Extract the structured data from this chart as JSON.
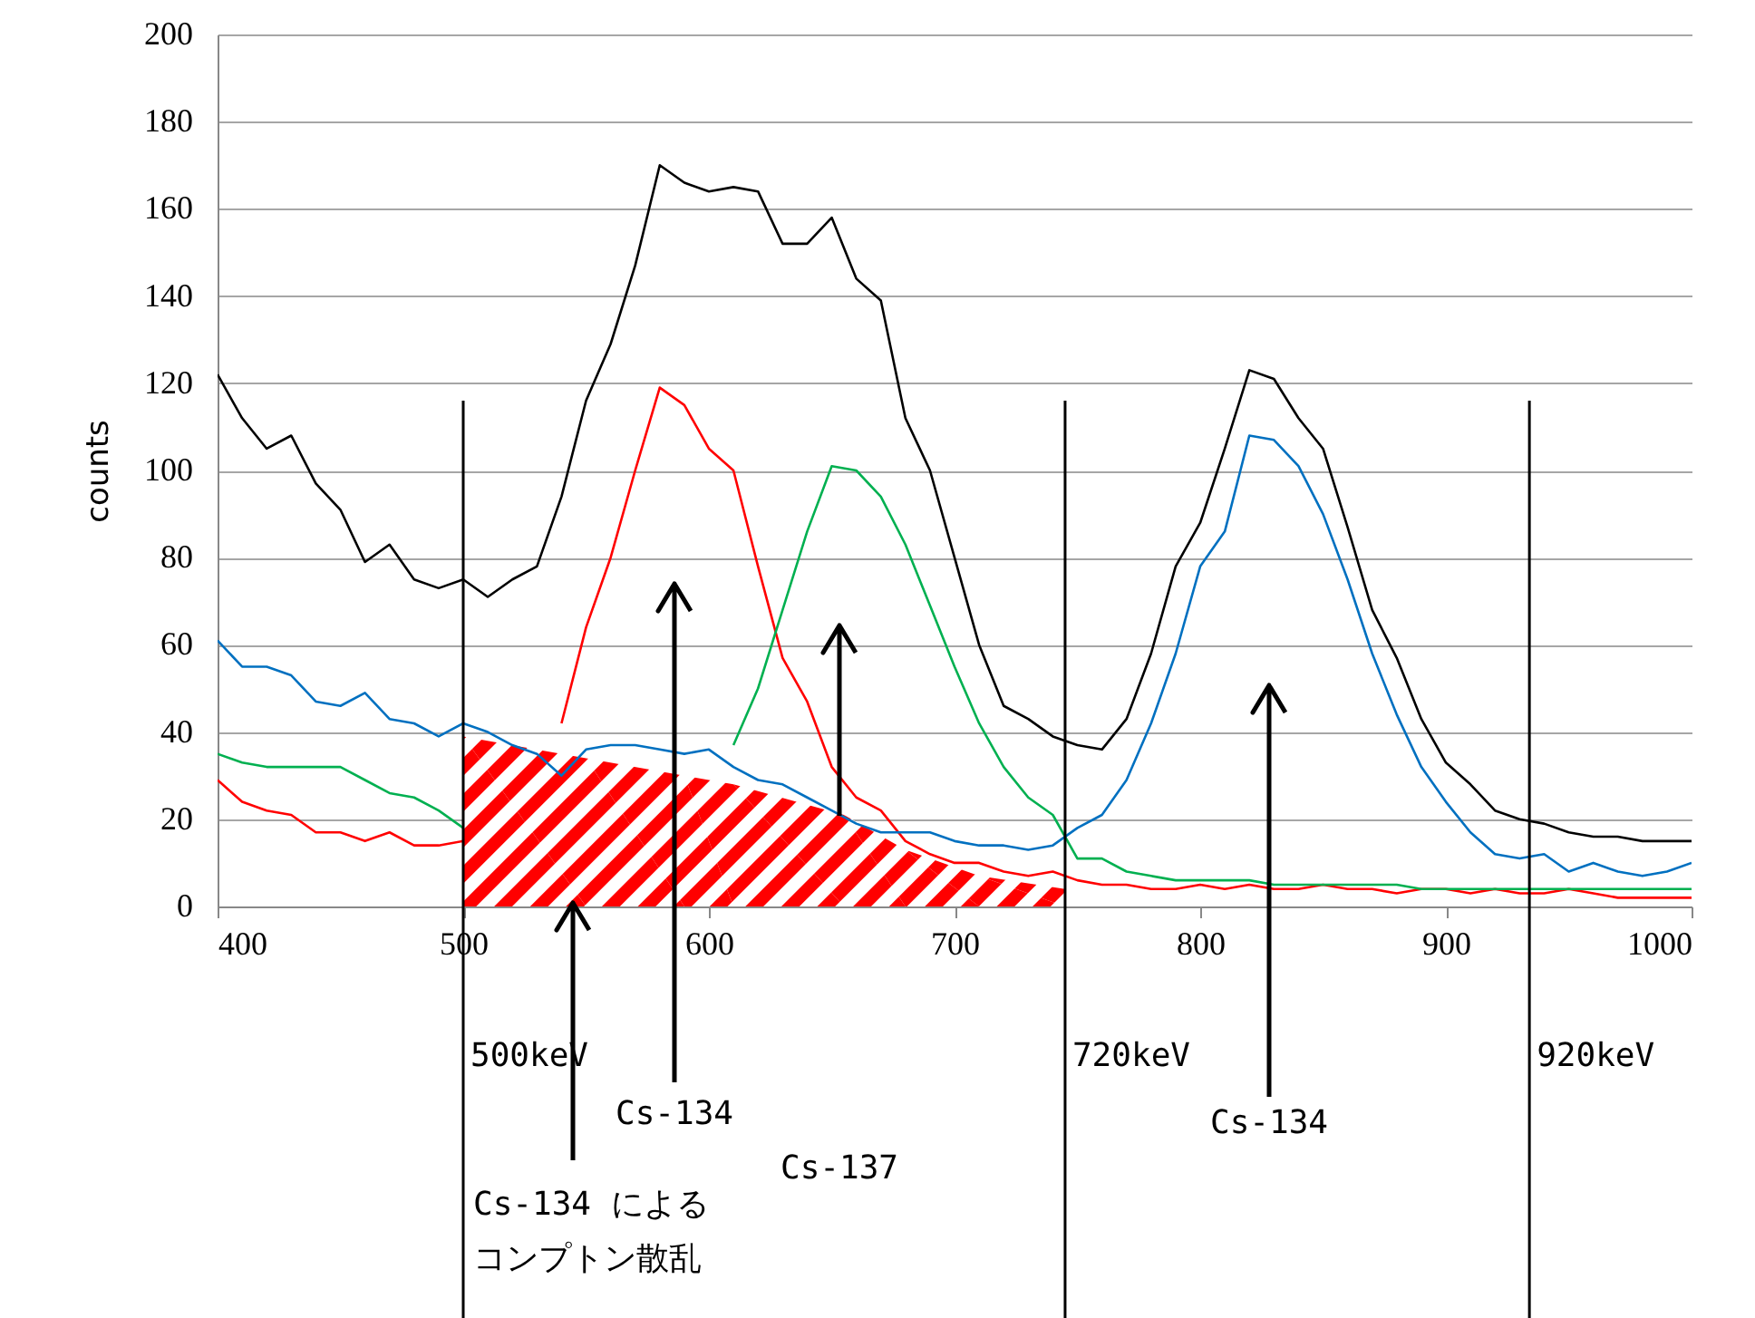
{
  "chart_data": {
    "type": "line",
    "ylabel": "counts",
    "x": [
      400,
      410,
      420,
      430,
      440,
      450,
      460,
      470,
      480,
      490,
      500,
      510,
      520,
      530,
      540,
      550,
      560,
      570,
      580,
      590,
      600,
      610,
      620,
      630,
      640,
      650,
      660,
      670,
      680,
      690,
      700,
      710,
      720,
      730,
      740,
      750,
      760,
      770,
      780,
      790,
      800,
      810,
      820,
      830,
      840,
      850,
      860,
      870,
      880,
      890,
      900,
      910,
      920,
      930,
      940,
      950,
      960,
      970,
      980,
      990,
      1000
    ],
    "series": [
      {
        "type": "area",
        "color": "#ff0000",
        "x": [
          500,
          550,
          590,
          610,
          655,
          680,
          710,
          745
        ],
        "values": [
          39,
          34,
          30,
          28,
          21,
          13,
          7,
          4
        ]
      },
      {
        "color": "#ff0000",
        "values": [
          29,
          24,
          22,
          21,
          17,
          17,
          15,
          17,
          14,
          14,
          15,
          null,
          null,
          null,
          42,
          64,
          80,
          100,
          119,
          115,
          105,
          100,
          78,
          57,
          47,
          32,
          25,
          22,
          15,
          12,
          10,
          10,
          8,
          7,
          8,
          6,
          5,
          5,
          4,
          4,
          5,
          4,
          5,
          4,
          4,
          5,
          4,
          4,
          3,
          4,
          4,
          3,
          4,
          3,
          3,
          4,
          3,
          2,
          2,
          2,
          2
        ]
      },
      {
        "color": "#00b050",
        "values": [
          35,
          33,
          32,
          32,
          32,
          32,
          29,
          26,
          25,
          22,
          18,
          null,
          null,
          null,
          null,
          null,
          null,
          null,
          null,
          null,
          null,
          37,
          50,
          68,
          86,
          101,
          100,
          94,
          83,
          69,
          55,
          42,
          32,
          25,
          21,
          11,
          11,
          8,
          7,
          6,
          6,
          6,
          6,
          5,
          5,
          5,
          5,
          5,
          5,
          4,
          4,
          4,
          4,
          4,
          4,
          4,
          4,
          4,
          4,
          4,
          4
        ]
      },
      {
        "color": "#0070c0",
        "values": [
          61,
          55,
          55,
          53,
          47,
          46,
          49,
          43,
          42,
          39,
          42,
          40,
          37,
          35,
          30,
          36,
          37,
          37,
          36,
          35,
          36,
          32,
          29,
          28,
          25,
          22,
          19,
          17,
          17,
          17,
          15,
          14,
          14,
          13,
          14,
          18,
          21,
          29,
          42,
          58,
          78,
          86,
          108,
          107,
          101,
          90,
          75,
          58,
          44,
          32,
          24,
          17,
          12,
          11,
          12,
          8,
          10,
          8,
          7,
          8,
          10
        ]
      },
      {
        "color": "#000000",
        "values": [
          122,
          112,
          105,
          108,
          97,
          91,
          79,
          83,
          75,
          73,
          75,
          71,
          75,
          78,
          94,
          116,
          129,
          147,
          170,
          166,
          164,
          165,
          164,
          152,
          152,
          158,
          144,
          139,
          112,
          100,
          80,
          60,
          46,
          43,
          39,
          37,
          36,
          43,
          58,
          78,
          88,
          105,
          123,
          121,
          112,
          105,
          87,
          68,
          57,
          43,
          33,
          28,
          22,
          20,
          19,
          17,
          16,
          16,
          15,
          15,
          15
        ]
      }
    ],
    "xlim": [
      400,
      1000
    ],
    "xticks": [
      400,
      500,
      600,
      700,
      800,
      900,
      {
        "value": 1000,
        "label": "1000"
      }
    ],
    "ylim": [
      0,
      200
    ],
    "yticks": [
      0,
      20,
      40,
      60,
      80,
      100,
      120,
      140,
      160,
      180,
      200
    ],
    "grid": "y",
    "ref_lines": [
      {
        "axis": "x",
        "value": 500,
        "label": "500keV",
        "color": "#000000"
      },
      {
        "axis": "x",
        "value": 745,
        "label": "720keV",
        "color": "#000000"
      },
      {
        "axis": "x",
        "value": 934,
        "label": "920keV",
        "color": "#000000"
      }
    ],
    "annotations": [
      "Cs-134",
      "Cs-137",
      "Cs-134",
      "Cs-134 による",
      "コンプトン散乱"
    ]
  }
}
